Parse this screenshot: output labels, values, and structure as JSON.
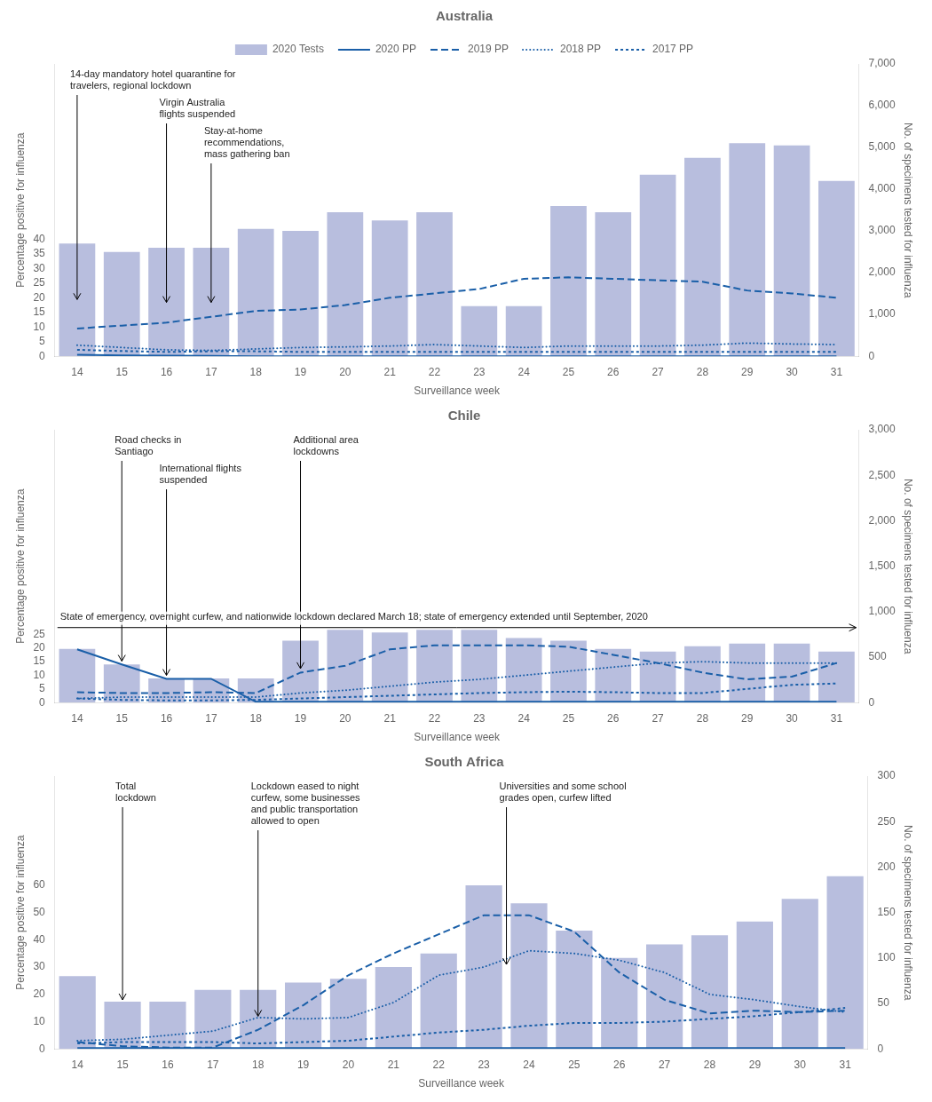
{
  "chart_data": [
    {
      "type": "bar",
      "title": "Australia",
      "xlabel": "Surveillance week",
      "ylabel": "Percentage positive for influenza",
      "y2label": "No. of specimens tested for influenza",
      "x": [
        14,
        15,
        16,
        17,
        18,
        19,
        20,
        21,
        22,
        23,
        24,
        25,
        26,
        27,
        28,
        29,
        30,
        31
      ],
      "xlim": [
        13.5,
        31.5
      ],
      "xticks": [
        14,
        15,
        16,
        17,
        18,
        19,
        20,
        21,
        22,
        23,
        24,
        25,
        26,
        27,
        28,
        29,
        30,
        31
      ],
      "ylim": [
        0,
        100
      ],
      "yticks": [
        0,
        5,
        10,
        15,
        20,
        25,
        30,
        35,
        40
      ],
      "y2lim": [
        0,
        7000
      ],
      "y2ticks": [
        0,
        {
          "value": 1000,
          "label": "1,000"
        },
        {
          "value": 2000,
          "label": "2,000"
        },
        {
          "value": 3000,
          "label": "3,000"
        },
        {
          "value": 4000,
          "label": "4,000"
        },
        {
          "value": 5000,
          "label": "5,000"
        },
        {
          "value": 6000,
          "label": "6,000"
        },
        {
          "value": 7000,
          "label": "7,000"
        }
      ],
      "grid": false,
      "legend": "top",
      "series": [
        {
          "name": "2020 Tests",
          "type": "bar",
          "axis": "y2",
          "color": "#b8bede",
          "values": [
            2700,
            2500,
            2600,
            2600,
            3050,
            3000,
            3450,
            3250,
            3450,
            1200,
            1200,
            3600,
            3450,
            4350,
            4750,
            5100,
            5050,
            4200
          ]
        },
        {
          "name": "2020 PP",
          "type": "line",
          "color": "#1a5fa8",
          "line_style": "solid",
          "values": [
            0.5,
            0.3,
            0.2,
            0.1,
            0.0,
            0.0,
            0.0,
            0.0,
            0.0,
            0.0,
            0.0,
            0.0,
            0.0,
            0.0,
            0.0,
            0.0,
            0.0,
            0.0
          ]
        },
        {
          "name": "2019 PP",
          "type": "line",
          "color": "#1a5fa8",
          "line_style": "dashed",
          "values": [
            9.5,
            10.5,
            11.5,
            13.5,
            15.5,
            16.0,
            17.5,
            20.0,
            21.5,
            23.0,
            26.5,
            27.0,
            26.5,
            26.0,
            25.5,
            22.5,
            21.5,
            20.0
          ]
        },
        {
          "name": "2018 PP",
          "type": "line",
          "color": "#1a5fa8",
          "line_style": "dotted",
          "values": [
            3.8,
            3.0,
            2.2,
            2.0,
            2.5,
            3.0,
            3.2,
            3.5,
            4.0,
            3.5,
            3.0,
            3.5,
            3.5,
            3.5,
            3.8,
            4.5,
            4.2,
            4.0
          ]
        },
        {
          "name": "2017 PP",
          "type": "line",
          "color": "#1a5fa8",
          "line_style": "short_dashed",
          "values": [
            2.2,
            1.8,
            1.5,
            1.7,
            1.7,
            1.5,
            1.5,
            1.5,
            1.5,
            1.5,
            1.5,
            1.5,
            1.5,
            1.5,
            1.5,
            1.5,
            1.5,
            1.5
          ]
        }
      ],
      "annotations": [
        {
          "text": "14-day mandatory hotel quarantine for\ntravelers, regional lockdown",
          "x": 14.0,
          "y": 18.5
        },
        {
          "text": "Virgin Australia\nflights suspended",
          "x": 16.0,
          "y": 17.5
        },
        {
          "text": "Stay-at-home\nrecommendations,\nmass gathering ban",
          "x": 17.0,
          "y": 17.5
        }
      ]
    },
    {
      "type": "bar",
      "title": "Chile",
      "xlabel": "Surveillance week",
      "ylabel": "Percentage positive for influenza",
      "y2label": "No. of specimens tested for influenza",
      "x": [
        14,
        15,
        16,
        17,
        18,
        19,
        20,
        21,
        22,
        23,
        24,
        25,
        26,
        27,
        28,
        29,
        30,
        31
      ],
      "xlim": [
        13.5,
        31.5
      ],
      "xticks": [
        14,
        15,
        16,
        17,
        18,
        19,
        20,
        21,
        22,
        23,
        24,
        25,
        26,
        27,
        28,
        29,
        30,
        31
      ],
      "ylim": [
        0,
        100
      ],
      "yticks": [
        0,
        5,
        10,
        15,
        20,
        25
      ],
      "y2lim": [
        0,
        3000
      ],
      "y2ticks": [
        0,
        500,
        {
          "value": 1000,
          "label": "1,000"
        },
        {
          "value": 1500,
          "label": "1,500"
        },
        {
          "value": 2000,
          "label": "2,000"
        },
        {
          "value": 2500,
          "label": "2,500"
        },
        {
          "value": 3000,
          "label": "3,000"
        }
      ],
      "grid": false,
      "series": [
        {
          "name": "2020 Tests",
          "type": "bar",
          "axis": "y2",
          "color": "#b8bede",
          "values": [
            590,
            420,
            265,
            265,
            265,
            680,
            800,
            770,
            800,
            800,
            710,
            680,
            590,
            560,
            620,
            650,
            650,
            560
          ]
        },
        {
          "name": "2020 PP",
          "type": "line",
          "color": "#1a5fa8",
          "line_style": "solid",
          "values": [
            19.5,
            14.0,
            8.7,
            8.7,
            0.3,
            0.3,
            0.3,
            0.3,
            0.3,
            0.3,
            0.3,
            0.3,
            0.3,
            0.3,
            0.3,
            0.3,
            0.3,
            0.3
          ]
        },
        {
          "name": "2019 PP",
          "type": "line",
          "color": "#1a5fa8",
          "line_style": "dashed",
          "values": [
            3.8,
            3.5,
            3.5,
            3.8,
            3.5,
            11.0,
            13.5,
            19.5,
            21.0,
            21.0,
            21.0,
            20.5,
            17.5,
            14.5,
            11.0,
            8.5,
            9.5,
            14.5
          ]
        },
        {
          "name": "2018 PP",
          "type": "line",
          "color": "#1a5fa8",
          "line_style": "dotted",
          "values": [
            1.5,
            2.0,
            2.0,
            2.0,
            2.0,
            3.5,
            4.5,
            6.0,
            7.5,
            8.5,
            10.0,
            11.5,
            13.0,
            14.5,
            15.0,
            14.5,
            14.5,
            14.5
          ]
        },
        {
          "name": "2017 PP",
          "type": "line",
          "color": "#1a5fa8",
          "line_style": "short_dashed",
          "values": [
            1.5,
            1.0,
            0.8,
            0.8,
            1.0,
            1.5,
            2.0,
            2.5,
            3.0,
            3.5,
            3.8,
            4.0,
            3.8,
            3.5,
            3.5,
            5.0,
            6.5,
            7.0
          ]
        }
      ],
      "span_annotation": {
        "text": "State of emergency, overnight curfew, and nationwide lockdown declared March 18; state of emergency extended until September, 2020",
        "y": 27.5
      },
      "annotations": [
        {
          "text": "Road checks in\nSantiago",
          "x": 15.0,
          "y": 14.2
        },
        {
          "text": "International flights\nsuspended",
          "x": 16.0,
          "y": 9.0
        },
        {
          "text": "Additional area\nlockdowns",
          "x": 19.0,
          "y": 11.5
        }
      ]
    },
    {
      "type": "bar",
      "title": "South Africa",
      "xlabel": "Surveillance week",
      "ylabel": "Percentage positive for influenza",
      "y2label": "No. of specimens tested for influenza",
      "x": [
        14,
        15,
        16,
        17,
        18,
        19,
        20,
        21,
        22,
        23,
        24,
        25,
        26,
        27,
        28,
        29,
        30,
        31
      ],
      "xlim": [
        13.5,
        31.5
      ],
      "xticks": [
        14,
        15,
        16,
        17,
        18,
        19,
        20,
        21,
        22,
        23,
        24,
        25,
        26,
        27,
        28,
        29,
        30,
        31
      ],
      "ylim": [
        0,
        100
      ],
      "yticks": [
        0,
        10,
        20,
        30,
        40,
        50,
        60
      ],
      "y2lim": [
        0,
        300
      ],
      "y2ticks": [
        0,
        50,
        100,
        150,
        200,
        250,
        300
      ],
      "grid": false,
      "series": [
        {
          "name": "2020 Tests",
          "type": "bar",
          "axis": "y2",
          "color": "#b8bede",
          "values": [
            80,
            52,
            52,
            65,
            65,
            73,
            77,
            90,
            105,
            180,
            160,
            130,
            100,
            115,
            125,
            140,
            165,
            190
          ]
        },
        {
          "name": "2020 PP",
          "type": "line",
          "color": "#1a5fa8",
          "line_style": "solid",
          "values": [
            0.3,
            0.3,
            0.3,
            0.3,
            0.3,
            0.3,
            0.3,
            0.3,
            0.3,
            0.3,
            0.3,
            0.3,
            0.3,
            0.3,
            0.3,
            0.3,
            0.3,
            0.3
          ]
        },
        {
          "name": "2019 PP",
          "type": "line",
          "color": "#1a5fa8",
          "line_style": "dashed",
          "values": [
            2.5,
            1.0,
            0.5,
            0.5,
            7.0,
            16.0,
            27.0,
            35.0,
            42.0,
            49.0,
            49.0,
            43.0,
            28.0,
            18.0,
            13.0,
            14.0,
            13.5,
            14.0
          ]
        },
        {
          "name": "2018 PP",
          "type": "line",
          "color": "#1a5fa8",
          "line_style": "dotted",
          "values": [
            3.0,
            3.5,
            5.0,
            6.5,
            11.5,
            11.0,
            11.5,
            17.0,
            27.0,
            30.0,
            36.0,
            35.0,
            32.5,
            28.0,
            20.0,
            18.0,
            15.5,
            13.5
          ]
        },
        {
          "name": "2017 PP",
          "type": "line",
          "color": "#1a5fa8",
          "line_style": "short_dashed",
          "values": [
            2.0,
            2.5,
            2.5,
            2.5,
            2.0,
            2.5,
            3.0,
            4.5,
            6.0,
            7.0,
            8.5,
            9.5,
            9.5,
            10.0,
            11.0,
            12.0,
            13.5,
            15.0
          ]
        }
      ],
      "annotations": [
        {
          "text": "Total\nlockdown",
          "x": 15.0,
          "y": 17.0
        },
        {
          "text": "Lockdown eased to night\ncurfew, some businesses\nand public transportation\nallowed to open",
          "x": 18.0,
          "y": 11.0
        },
        {
          "text": "Universities and some school\ngrades open, curfew lifted",
          "x": 23.5,
          "y": 30.0
        }
      ]
    }
  ]
}
